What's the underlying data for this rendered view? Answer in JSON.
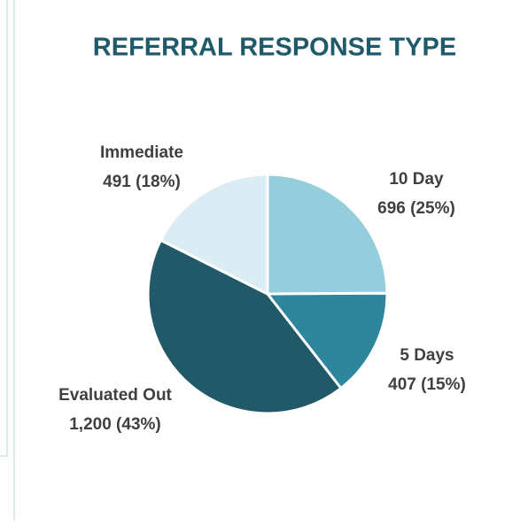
{
  "chart_data": {
    "type": "pie",
    "title": "REFERRAL RESPONSE TYPE",
    "categories": [
      "10 Day",
      "5 Days",
      "Evaluated Out",
      "Immediate"
    ],
    "values": [
      696,
      407,
      1200,
      491
    ],
    "value_labels": [
      "696 (25%)",
      "407 (15%)",
      "1,200 (43%)",
      "491 (18%)"
    ],
    "colors": [
      "#96cddc",
      "#2e869c",
      "#215968",
      "#daedf4"
    ]
  }
}
